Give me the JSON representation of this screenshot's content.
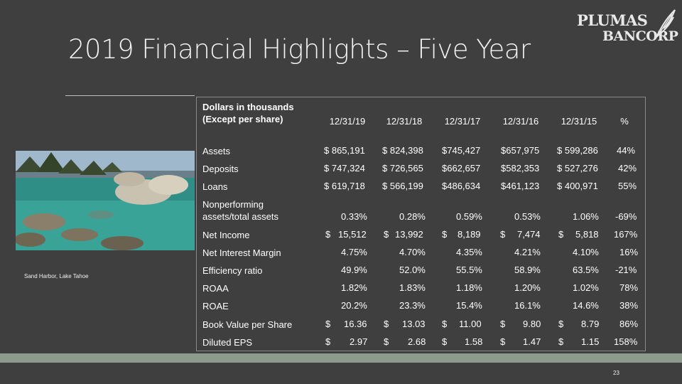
{
  "slide": {
    "title": "2019 Financial Highlights – Five Year",
    "logo": {
      "line1": "PLUMAS",
      "line2": "BANCORP"
    },
    "photo_caption": "Sand Harbor, Lake Tahoe",
    "page_number": "23",
    "colors": {
      "background": "#3f3f3f",
      "bottom_band": "#8c9b8c",
      "text": "#ffffff"
    }
  },
  "table": {
    "header_label_line1": "Dollars in thousands",
    "header_label_line2": "(Except per share)",
    "columns": [
      "12/31/19",
      "12/31/18",
      "12/31/17",
      "12/31/16",
      "12/31/15",
      "%"
    ],
    "rows": [
      {
        "label": "Assets",
        "values": [
          "$ 865,191",
          "$ 824,398",
          "$745,427",
          "$657,975",
          "$ 599,286"
        ],
        "pct": "44%"
      },
      {
        "label": "Deposits",
        "values": [
          "$ 747,324",
          "$ 726,565",
          "$662,657",
          "$582,353",
          "$ 527,276"
        ],
        "pct": "42%"
      },
      {
        "label": "Loans",
        "values": [
          "$ 619,718",
          "$ 566,199",
          "$486,634",
          "$461,123",
          "$ 400,971"
        ],
        "pct": "55%"
      },
      {
        "label_line1": "Nonperforming",
        "label_line2": "assets/total assets",
        "values": [
          "0.33%",
          "0.28%",
          "0.59%",
          "0.53%",
          "1.06%"
        ],
        "pct": "-69%"
      },
      {
        "label": "Net Income",
        "currency": "$",
        "values": [
          "15,512",
          "13,992",
          "8,189",
          "7,474",
          "5,818"
        ],
        "pct": "167%"
      },
      {
        "label": "Net Interest Margin",
        "values": [
          "4.75%",
          "4.70%",
          "4.35%",
          "4.21%",
          "4.10%"
        ],
        "pct": "16%"
      },
      {
        "label": "Efficiency ratio",
        "values": [
          "49.9%",
          "52.0%",
          "55.5%",
          "58.9%",
          "63.5%"
        ],
        "pct": "-21%"
      },
      {
        "label": "ROAA",
        "values": [
          "1.82%",
          "1.83%",
          "1.18%",
          "1.20%",
          "1.02%"
        ],
        "pct": "78%"
      },
      {
        "label": "ROAE",
        "values": [
          "20.2%",
          "23.3%",
          "15.4%",
          "16.1%",
          "14.6%"
        ],
        "pct": "38%"
      },
      {
        "label": "Book Value per Share",
        "currency": "$",
        "values": [
          "16.36",
          "13.03",
          "11.00",
          "9.80",
          "8.79"
        ],
        "pct": "86%"
      },
      {
        "label": "Diluted EPS",
        "currency": "$",
        "values": [
          "2.97",
          "2.68",
          "1.58",
          "1.47",
          "1.15"
        ],
        "pct": "158%"
      }
    ]
  }
}
